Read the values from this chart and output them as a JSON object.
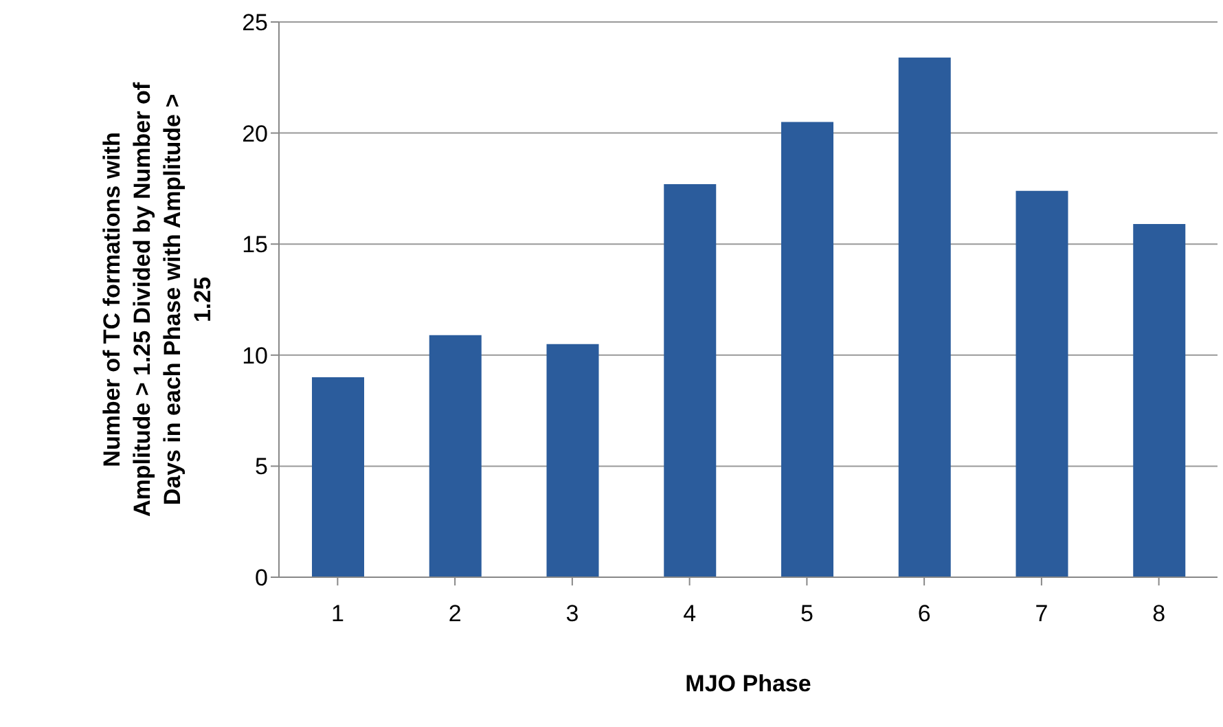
{
  "chart_data": {
    "type": "bar",
    "xlabel": "MJO Phase",
    "ylabel": "Number of TC formations with Amplitude > 1.25 Divided by Number of Days in each Phase with Amplitude > 1.25",
    "categories": [
      "1",
      "2",
      "3",
      "4",
      "5",
      "6",
      "7",
      "8"
    ],
    "values": [
      9.0,
      10.9,
      10.5,
      17.7,
      20.5,
      23.4,
      17.4,
      15.9
    ],
    "color": "#2b5c9c",
    "ylim": [
      0,
      25
    ],
    "yticks": [
      0,
      5,
      10,
      15,
      20,
      25
    ],
    "grid": "y"
  }
}
